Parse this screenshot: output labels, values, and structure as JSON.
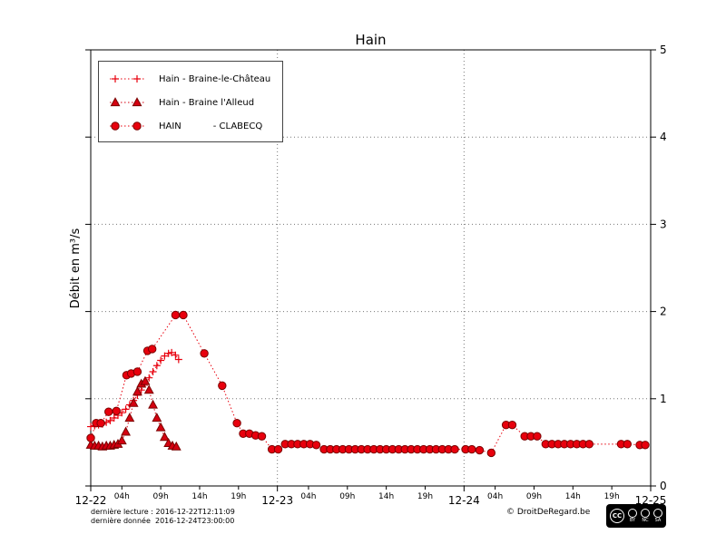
{
  "title": "Hain",
  "footer": {
    "line1": "dernière lecture : 2016-12-22T12:11:09",
    "line2": "dernière donnée  2016-12-24T23:00:00",
    "copyright": "© DroitDeRegard.be"
  },
  "license": {
    "cc": "CC",
    "parts": [
      "BY",
      "NC",
      "SA"
    ]
  },
  "chart_data": {
    "type": "line",
    "title": "Hain",
    "ylabel": "Débit en m³/s",
    "xlabel": "",
    "ylim": [
      0,
      5
    ],
    "x_range_hours": [
      0,
      72
    ],
    "grid": true,
    "legend_position": "upper-left",
    "y_ticks": [
      0,
      1,
      2,
      3,
      4,
      5
    ],
    "y_gridlines": [
      1,
      2,
      3,
      4
    ],
    "x_gridlines_hours": [
      24,
      48
    ],
    "x_major_ticks": [
      {
        "hour": 0,
        "label": "12-22"
      },
      {
        "hour": 24,
        "label": "12-23"
      },
      {
        "hour": 48,
        "label": "12-24"
      },
      {
        "hour": 72,
        "label": "12-25"
      }
    ],
    "x_minor_ticks": [
      {
        "hour": 4,
        "label": "04h"
      },
      {
        "hour": 9,
        "label": "09h"
      },
      {
        "hour": 14,
        "label": "14h"
      },
      {
        "hour": 19,
        "label": "19h"
      },
      {
        "hour": 28,
        "label": "04h"
      },
      {
        "hour": 33,
        "label": "09h"
      },
      {
        "hour": 38,
        "label": "14h"
      },
      {
        "hour": 43,
        "label": "19h"
      },
      {
        "hour": 52,
        "label": "04h"
      },
      {
        "hour": 57,
        "label": "09h"
      },
      {
        "hour": 62,
        "label": "14h"
      },
      {
        "hour": 67,
        "label": "19h"
      }
    ],
    "series": [
      {
        "name": "Hain - Braine-le-Château",
        "marker": "plus",
        "color": "#e8000d",
        "edge": "#b00000",
        "x": [
          0,
          0.5,
          1,
          1.5,
          2,
          2.5,
          3,
          3.5,
          4,
          4.5,
          5,
          5.5,
          6,
          6.5,
          7,
          7.5,
          8,
          8.5,
          9,
          9.5,
          10,
          10.4,
          10.9,
          11.3
        ],
        "y": [
          0.68,
          0.69,
          0.7,
          0.71,
          0.73,
          0.75,
          0.78,
          0.81,
          0.84,
          0.88,
          0.93,
          0.98,
          1.04,
          1.1,
          1.17,
          1.24,
          1.31,
          1.38,
          1.44,
          1.49,
          1.52,
          1.53,
          1.5,
          1.45
        ]
      },
      {
        "name": "Hain - Braine l'Alleud",
        "marker": "triangle",
        "color": "#d40010",
        "edge": "#7a0000",
        "x": [
          0,
          0.5,
          1,
          1.5,
          2,
          2.5,
          3,
          3.5,
          4,
          4.5,
          5,
          5.5,
          6,
          6.5,
          7,
          7.5,
          8,
          8.5,
          9,
          9.5,
          10,
          10.5,
          11
        ],
        "y": [
          0.47,
          0.46,
          0.46,
          0.45,
          0.46,
          0.46,
          0.47,
          0.48,
          0.52,
          0.62,
          0.78,
          0.95,
          1.08,
          1.17,
          1.2,
          1.1,
          0.93,
          0.78,
          0.67,
          0.56,
          0.49,
          0.46,
          0.45
        ]
      },
      {
        "name": "HAIN           - CLABECQ",
        "marker": "circle",
        "color": "#e8000d",
        "edge": "#7a0000",
        "x": [
          0,
          0.7,
          1.3,
          2.3,
          3.3,
          4.6,
          5.2,
          6.0,
          7.3,
          7.9,
          10.9,
          11.9,
          14.6,
          16.9,
          18.8,
          19.6,
          20.4,
          21.2,
          22.0,
          23.3,
          24.1,
          25.0,
          25.8,
          26.6,
          27.4,
          28.2,
          29.0,
          30.0,
          30.8,
          31.6,
          32.4,
          33.2,
          34.0,
          34.8,
          35.6,
          36.4,
          37.2,
          38.0,
          38.8,
          39.6,
          40.4,
          41.2,
          42.0,
          42.8,
          43.6,
          44.4,
          45.2,
          46.0,
          46.8,
          48.2,
          49.0,
          50.0,
          51.5,
          53.4,
          54.2,
          55.8,
          56.6,
          57.4,
          58.5,
          59.3,
          60.1,
          60.9,
          61.7,
          62.5,
          63.3,
          64.1,
          68.2,
          69.0,
          70.6,
          71.3
        ],
        "y": [
          0.55,
          0.72,
          0.72,
          0.85,
          0.86,
          1.27,
          1.29,
          1.31,
          1.55,
          1.57,
          1.96,
          1.96,
          1.52,
          1.15,
          0.72,
          0.6,
          0.6,
          0.58,
          0.57,
          0.42,
          0.42,
          0.48,
          0.48,
          0.48,
          0.48,
          0.48,
          0.47,
          0.42,
          0.42,
          0.42,
          0.42,
          0.42,
          0.42,
          0.42,
          0.42,
          0.42,
          0.42,
          0.42,
          0.42,
          0.42,
          0.42,
          0.42,
          0.42,
          0.42,
          0.42,
          0.42,
          0.42,
          0.42,
          0.42,
          0.42,
          0.42,
          0.41,
          0.38,
          0.7,
          0.7,
          0.57,
          0.57,
          0.57,
          0.48,
          0.48,
          0.48,
          0.48,
          0.48,
          0.48,
          0.48,
          0.48,
          0.48,
          0.48,
          0.47,
          0.47
        ]
      }
    ]
  }
}
